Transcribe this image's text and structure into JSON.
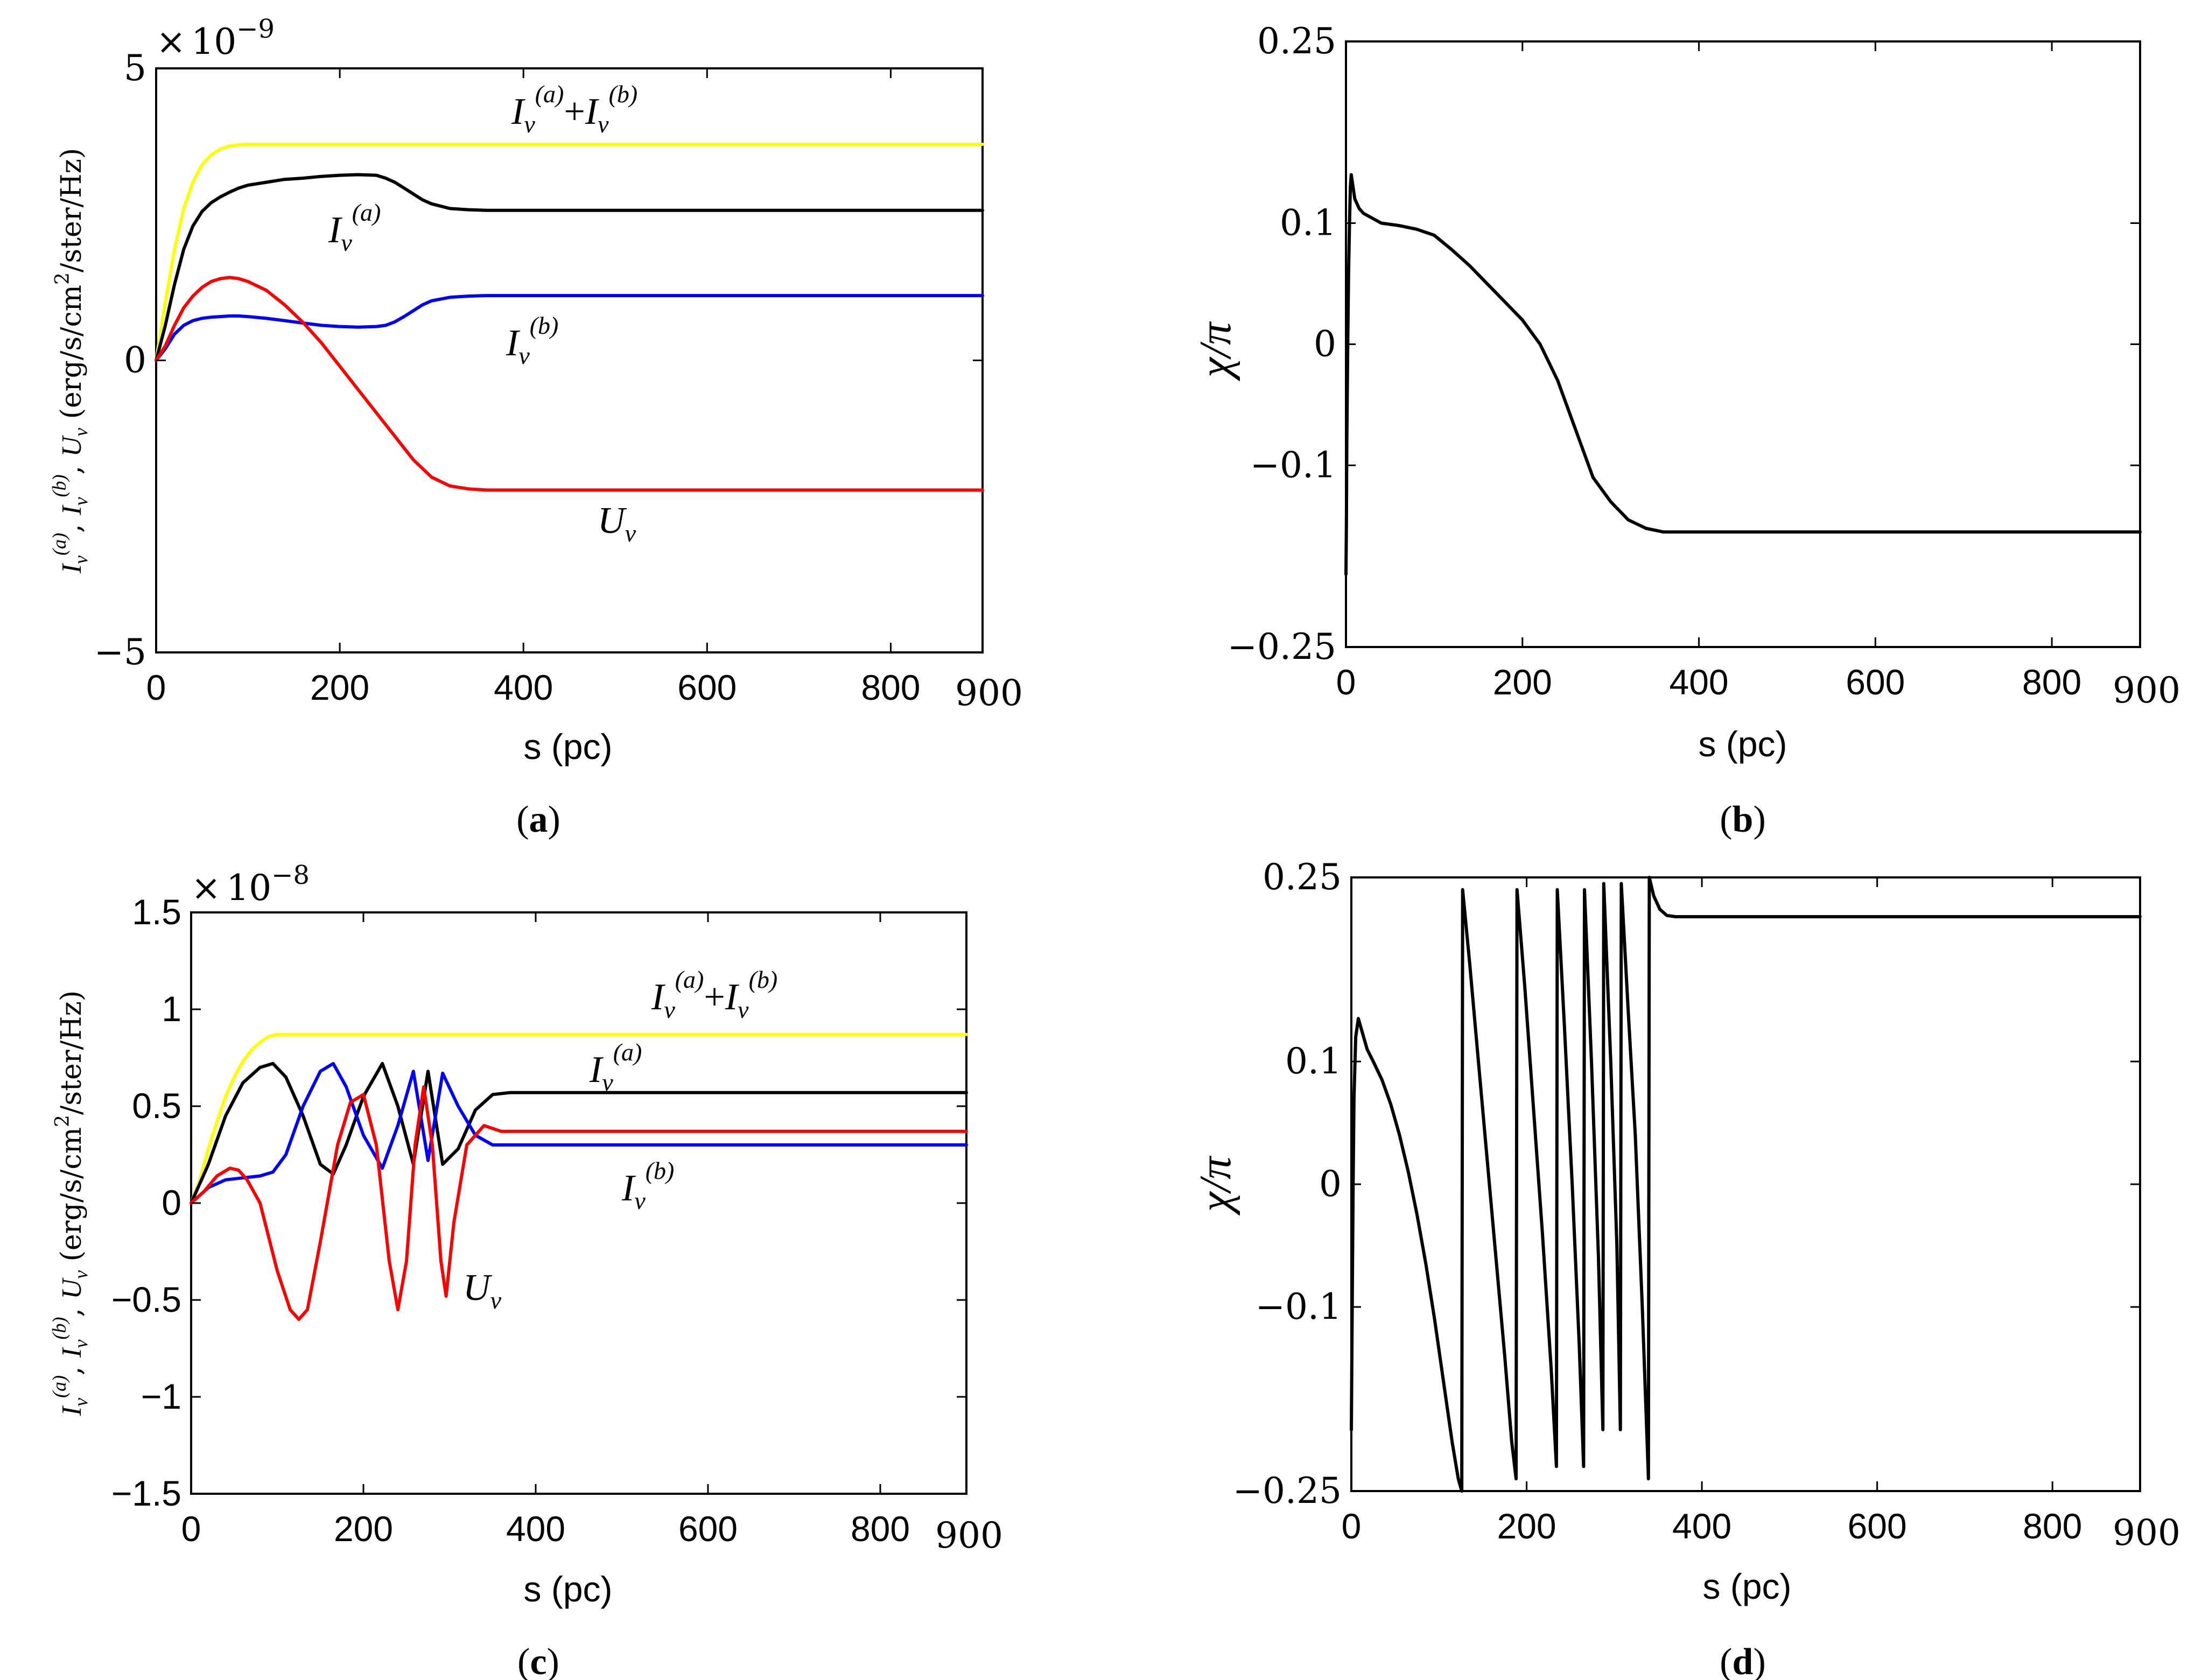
{
  "chart_data": [
    {
      "id": "a",
      "type": "line",
      "caption": "a",
      "xlabel": "s (pc)",
      "ylabel": "I_ν^(a), I_ν^(b), U_ν (erg/s/cm²/ster/Hz)",
      "ylabel_parts": {
        "sym_a": "I",
        "sub": "ν",
        "sup_a": "(a)",
        "sup_b": "(b)",
        "sym_u": "U",
        "unit_pre": "(erg/s/cm",
        "unit_sup": "2",
        "unit_post": "/ster/Hz)"
      },
      "multiplier": {
        "prefix": "×",
        "base": "10",
        "exp": "−9"
      },
      "xlim": [
        0,
        900
      ],
      "ylim": [
        -5,
        5
      ],
      "xticks": [
        0,
        200,
        400,
        600,
        800
      ],
      "xtick_labels": [
        "0",
        "200",
        "400",
        "600",
        "800"
      ],
      "x_end_label": "900",
      "yticks": [
        -5,
        0,
        5
      ],
      "ytick_labels": [
        "−5",
        "0",
        "5"
      ],
      "series": [
        {
          "name": "I_ν^(a)+I_ν^(b)",
          "color": "#ffff00",
          "x": [
            0,
            10,
            20,
            30,
            40,
            50,
            60,
            70,
            80,
            90,
            100,
            110,
            120,
            900
          ],
          "values": [
            0,
            1.0,
            1.9,
            2.6,
            3.05,
            3.35,
            3.52,
            3.62,
            3.67,
            3.69,
            3.7,
            3.7,
            3.7,
            3.7
          ]
        },
        {
          "name": "I_ν^(a)",
          "color": "#000000",
          "x": [
            0,
            10,
            20,
            30,
            40,
            50,
            60,
            70,
            80,
            90,
            100,
            120,
            140,
            160,
            180,
            200,
            220,
            240,
            250,
            260,
            270,
            280,
            290,
            300,
            320,
            340,
            360,
            900
          ],
          "values": [
            0,
            0.6,
            1.3,
            1.9,
            2.3,
            2.55,
            2.7,
            2.8,
            2.88,
            2.95,
            3.0,
            3.05,
            3.1,
            3.12,
            3.15,
            3.17,
            3.18,
            3.17,
            3.12,
            3.05,
            2.95,
            2.85,
            2.75,
            2.68,
            2.6,
            2.58,
            2.57,
            2.57
          ]
        },
        {
          "name": "I_ν^(b)",
          "color": "#0000ff",
          "x": [
            0,
            10,
            20,
            30,
            40,
            50,
            60,
            70,
            80,
            90,
            100,
            120,
            140,
            160,
            180,
            200,
            220,
            240,
            250,
            260,
            270,
            280,
            290,
            300,
            320,
            340,
            360,
            900
          ],
          "values": [
            0,
            0.2,
            0.45,
            0.6,
            0.68,
            0.72,
            0.74,
            0.75,
            0.76,
            0.76,
            0.75,
            0.72,
            0.68,
            0.64,
            0.6,
            0.58,
            0.57,
            0.58,
            0.6,
            0.66,
            0.75,
            0.85,
            0.95,
            1.02,
            1.08,
            1.1,
            1.11,
            1.11
          ]
        },
        {
          "name": "U_ν",
          "color": "#ff0000",
          "x": [
            0,
            10,
            20,
            30,
            40,
            50,
            60,
            70,
            80,
            90,
            100,
            120,
            140,
            160,
            180,
            200,
            220,
            240,
            260,
            280,
            300,
            320,
            340,
            360,
            380,
            900
          ],
          "values": [
            0,
            0.25,
            0.6,
            0.9,
            1.1,
            1.25,
            1.35,
            1.4,
            1.42,
            1.4,
            1.35,
            1.2,
            0.95,
            0.65,
            0.3,
            -0.1,
            -0.5,
            -0.9,
            -1.3,
            -1.7,
            -2.0,
            -2.15,
            -2.2,
            -2.22,
            -2.22,
            -2.22
          ]
        }
      ],
      "annotations": [
        "I_ν^(a)+I_ν^(b)",
        "I_ν^(a)",
        "I_ν^(b)",
        "U_ν"
      ]
    },
    {
      "id": "b",
      "type": "line",
      "caption": "b",
      "xlabel": "s (pc)",
      "ylabel": "χ/π",
      "xlim": [
        0,
        900
      ],
      "ylim": [
        -0.25,
        0.25
      ],
      "xticks": [
        0,
        200,
        400,
        600,
        800
      ],
      "xtick_labels": [
        "0",
        "200",
        "400",
        "600",
        "800"
      ],
      "x_end_label": "900",
      "yticks": [
        0.25,
        0.1,
        0,
        -0.1,
        -0.25
      ],
      "ytick_labels": [
        "0.25",
        "0.1",
        "0",
        "−0.1",
        "−0.25"
      ],
      "series": [
        {
          "name": "χ/π",
          "color": "#000000",
          "x": [
            0,
            0.5,
            1,
            2,
            3,
            4,
            5,
            6,
            8,
            10,
            15,
            20,
            30,
            40,
            60,
            80,
            100,
            120,
            140,
            160,
            180,
            200,
            220,
            240,
            260,
            280,
            300,
            320,
            340,
            360,
            380,
            400,
            900
          ],
          "values": [
            -0.19,
            -0.15,
            -0.08,
            0.0,
            0.06,
            0.1,
            0.13,
            0.14,
            0.13,
            0.12,
            0.112,
            0.108,
            0.104,
            0.1,
            0.098,
            0.095,
            0.09,
            0.078,
            0.065,
            0.05,
            0.035,
            0.02,
            0.0,
            -0.03,
            -0.07,
            -0.11,
            -0.13,
            -0.145,
            -0.152,
            -0.155,
            -0.155,
            -0.155,
            -0.155
          ]
        }
      ]
    },
    {
      "id": "c",
      "type": "line",
      "caption": "c",
      "xlabel": "s (pc)",
      "ylabel": "I_ν^(a), I_ν^(b), U_ν (erg/s/cm²/ster/Hz)",
      "ylabel_parts": {
        "sym_a": "I",
        "sub": "ν",
        "sup_a": "(a)",
        "sup_b": "(b)",
        "sym_u": "U",
        "unit_pre": "(erg/s/cm",
        "unit_sup": "2",
        "unit_post": "/ster/Hz)"
      },
      "multiplier": {
        "prefix": "×",
        "base": "10",
        "exp": "−8"
      },
      "xlim": [
        0,
        900
      ],
      "ylim": [
        -1.5,
        1.5
      ],
      "xticks": [
        0,
        200,
        400,
        600,
        800
      ],
      "xtick_labels": [
        "0",
        "200",
        "400",
        "600",
        "800"
      ],
      "x_end_label": "900",
      "yticks": [
        1.5,
        1,
        0.5,
        0,
        -0.5,
        -1,
        -1.5
      ],
      "ytick_labels": [
        "1.5",
        "1",
        "0.5",
        "0",
        "−0.5",
        "−1",
        "−1.5"
      ],
      "series": [
        {
          "name": "I_ν^(a)+I_ν^(b)",
          "color": "#ffff00",
          "x": [
            0,
            10,
            20,
            30,
            40,
            50,
            60,
            70,
            80,
            90,
            100,
            110,
            120,
            900
          ],
          "values": [
            0,
            0.12,
            0.28,
            0.42,
            0.55,
            0.65,
            0.73,
            0.79,
            0.83,
            0.86,
            0.87,
            0.87,
            0.87,
            0.87
          ]
        },
        {
          "name": "I_ν^(a)",
          "color": "#000000",
          "x": [
            0,
            20,
            40,
            60,
            80,
            95,
            110,
            130,
            150,
            165,
            180,
            200,
            222,
            240,
            258,
            275,
            292,
            310,
            330,
            350,
            370,
            900
          ],
          "values": [
            0,
            0.2,
            0.45,
            0.62,
            0.7,
            0.72,
            0.65,
            0.45,
            0.2,
            0.15,
            0.3,
            0.55,
            0.72,
            0.5,
            0.2,
            0.68,
            0.2,
            0.28,
            0.48,
            0.56,
            0.57,
            0.57
          ]
        },
        {
          "name": "I_ν^(b)",
          "color": "#0000ff",
          "x": [
            0,
            20,
            40,
            60,
            80,
            95,
            110,
            130,
            150,
            165,
            180,
            200,
            222,
            240,
            258,
            275,
            292,
            310,
            330,
            350,
            370,
            900
          ],
          "values": [
            0,
            0.08,
            0.12,
            0.13,
            0.14,
            0.16,
            0.25,
            0.5,
            0.68,
            0.72,
            0.6,
            0.35,
            0.18,
            0.4,
            0.68,
            0.22,
            0.67,
            0.5,
            0.35,
            0.3,
            0.3,
            0.3
          ]
        },
        {
          "name": "U_ν",
          "color": "#ff0000",
          "x": [
            0,
            15,
            30,
            45,
            55,
            65,
            80,
            100,
            115,
            125,
            135,
            150,
            170,
            185,
            200,
            215,
            230,
            240,
            250,
            260,
            270,
            280,
            290,
            296,
            305,
            320,
            340,
            360,
            380,
            900
          ],
          "values": [
            0,
            0.06,
            0.14,
            0.18,
            0.17,
            0.12,
            0.0,
            -0.35,
            -0.55,
            -0.6,
            -0.55,
            -0.2,
            0.3,
            0.52,
            0.56,
            0.3,
            -0.3,
            -0.55,
            -0.3,
            0.3,
            0.6,
            0.3,
            -0.3,
            -0.48,
            -0.1,
            0.3,
            0.4,
            0.37,
            0.37,
            0.37
          ]
        }
      ],
      "annotations": [
        "I_ν^(a)+I_ν^(b)",
        "I_ν^(a)",
        "I_ν^(b)",
        "U_ν"
      ]
    },
    {
      "id": "d",
      "type": "line",
      "caption": "d",
      "xlabel": "s (pc)",
      "ylabel": "χ/π",
      "xlim": [
        0,
        900
      ],
      "ylim": [
        -0.25,
        0.25
      ],
      "xticks": [
        0,
        200,
        400,
        600,
        800
      ],
      "xtick_labels": [
        "0",
        "200",
        "400",
        "600",
        "800"
      ],
      "x_end_label": "900",
      "yticks": [
        0.25,
        0.1,
        0,
        -0.1,
        -0.25
      ],
      "ytick_labels": [
        "0.25",
        "0.1",
        "0",
        "−0.1",
        "−0.25"
      ],
      "series": [
        {
          "name": "χ/π",
          "color": "#000000",
          "x": [
            0,
            1,
            2,
            3,
            5,
            8,
            12,
            18,
            25,
            35,
            45,
            55,
            65,
            75,
            85,
            95,
            105,
            115,
            122,
            126,
            127,
            135,
            145,
            155,
            165,
            175,
            183,
            188,
            189,
            198,
            208,
            218,
            228,
            234,
            235,
            243,
            252,
            260,
            265,
            266,
            274,
            282,
            287,
            288,
            296,
            303,
            307,
            308,
            316,
            324,
            332,
            339,
            340,
            345,
            352,
            360,
            370,
            380,
            400,
            500,
            900
          ],
          "values": [
            -0.2,
            -0.1,
            0.0,
            0.07,
            0.12,
            0.135,
            0.125,
            0.11,
            0.1,
            0.085,
            0.065,
            0.04,
            0.01,
            -0.025,
            -0.065,
            -0.11,
            -0.16,
            -0.21,
            -0.24,
            -0.25,
            0.24,
            0.18,
            0.1,
            0.02,
            -0.06,
            -0.14,
            -0.21,
            -0.24,
            0.24,
            0.16,
            0.06,
            -0.04,
            -0.15,
            -0.23,
            0.24,
            0.13,
            0.0,
            -0.13,
            -0.23,
            0.24,
            0.1,
            -0.06,
            -0.2,
            0.245,
            0.1,
            -0.05,
            -0.2,
            0.245,
            0.14,
            0.04,
            -0.1,
            -0.24,
            0.25,
            0.235,
            0.224,
            0.219,
            0.218,
            0.218,
            0.218,
            0.218,
            0.218
          ]
        }
      ]
    }
  ]
}
